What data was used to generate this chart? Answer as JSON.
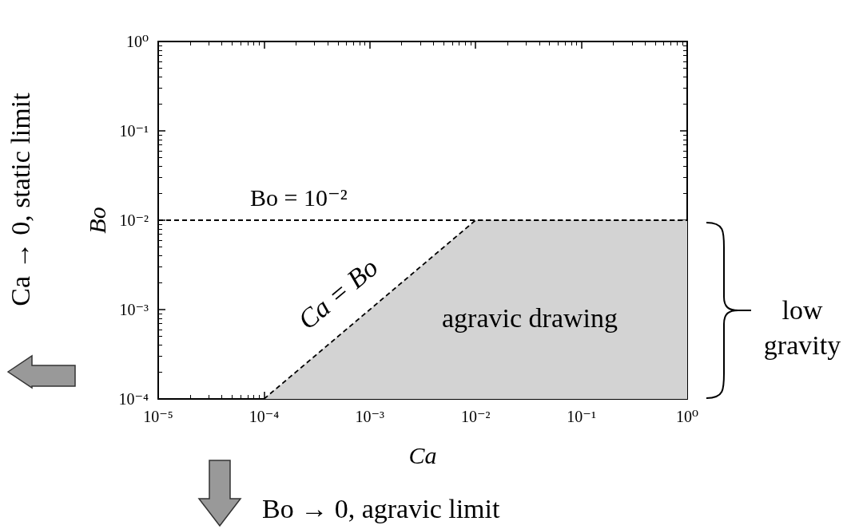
{
  "chart_data": {
    "type": "area",
    "xlabel": "Ca",
    "ylabel": "Bo",
    "log": "xy",
    "xlim": [
      1e-05,
      1
    ],
    "ylim": [
      0.0001,
      1
    ],
    "xticks": [
      {
        "value": 1e-05,
        "label": "10⁻⁵"
      },
      {
        "value": 0.0001,
        "label": "10⁻⁴"
      },
      {
        "value": 0.001,
        "label": "10⁻³"
      },
      {
        "value": 0.01,
        "label": "10⁻²"
      },
      {
        "value": 0.1,
        "label": "10⁻¹"
      },
      {
        "value": 1,
        "label": "10⁰"
      }
    ],
    "yticks": [
      {
        "value": 0.0001,
        "label": "10⁻⁴"
      },
      {
        "value": 0.001,
        "label": "10⁻³"
      },
      {
        "value": 0.01,
        "label": "10⁻²"
      },
      {
        "value": 0.1,
        "label": "10⁻¹"
      },
      {
        "value": 1,
        "label": "10⁰"
      }
    ],
    "series": [
      {
        "x": [
          0.0001,
          0.01,
          1
        ],
        "values": [
          0.0001,
          0.01,
          0.01
        ],
        "color": "#d3d3d3",
        "line_style": "dashed"
      }
    ],
    "ref_lines": [
      {
        "axis": "y",
        "value": 0.01,
        "label": "Bo = 10⁻²",
        "line_style": "dashed",
        "color": "#000000"
      }
    ],
    "annotations": [
      {
        "text": "Ca = Bo",
        "x": 0.001,
        "y": 0.001
      },
      "agravic drawing",
      "low gravity",
      "Ca → 0, static limit",
      "Bo → 0, agravic limit"
    ],
    "grid": false,
    "marker": "none"
  }
}
